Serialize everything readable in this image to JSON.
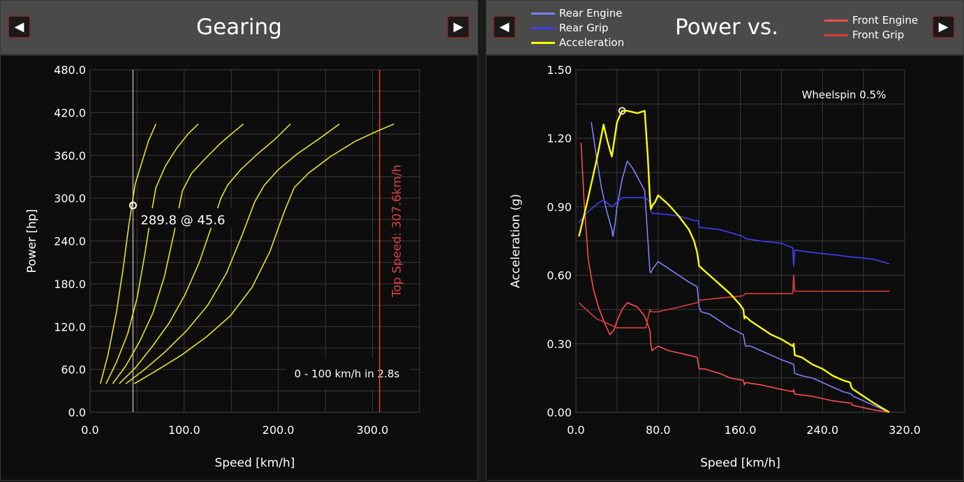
{
  "left_panel": {
    "title": "Gearing",
    "prev_label": "◀",
    "next_label": "▶"
  },
  "right_panel": {
    "title": "Power vs. Traction",
    "prev_label": "◀",
    "next_label": "▶",
    "legend": [
      {
        "name": "Rear Engine",
        "color": "#7f7fff"
      },
      {
        "name": "Rear Grip",
        "color": "#3f3fff"
      },
      {
        "name": "Acceleration",
        "color": "#ffff00"
      },
      {
        "name": "Front Engine",
        "color": "#ff4d4d"
      },
      {
        "name": "Front Grip",
        "color": "#e03c3c"
      }
    ]
  },
  "chart_data": [
    {
      "type": "line",
      "xlabel": "Speed [km/h]",
      "ylabel": "Power [hp]",
      "xlim": [
        0,
        350
      ],
      "ylim": [
        0,
        480
      ],
      "xticks": [
        "0.0",
        "100.0",
        "200.0",
        "300.0"
      ],
      "xtick_values": [
        0,
        100,
        200,
        300
      ],
      "yticks": [
        "0.0",
        "60.0",
        "120.0",
        "180.0",
        "240.0",
        "300.0",
        "360.0",
        "420.0",
        "480.0"
      ],
      "ytick_values": [
        0,
        60,
        120,
        180,
        240,
        300,
        360,
        420,
        480
      ],
      "grid": true,
      "color": "#e8e02a",
      "series": [
        {
          "x": [
            11,
            19,
            28,
            35,
            41,
            45,
            48,
            55,
            62,
            70
          ],
          "y": [
            40,
            80,
            140,
            200,
            260,
            295,
            320,
            350,
            380,
            404
          ]
        },
        {
          "x": [
            17,
            28,
            40,
            50,
            58,
            64,
            70,
            80,
            92,
            104,
            115
          ],
          "y": [
            40,
            70,
            110,
            160,
            220,
            270,
            315,
            345,
            370,
            390,
            404
          ]
        },
        {
          "x": [
            24,
            38,
            53,
            67,
            79,
            89,
            98,
            108,
            122,
            137,
            150,
            163
          ],
          "y": [
            40,
            65,
            100,
            140,
            190,
            250,
            310,
            335,
            355,
            375,
            390,
            404
          ]
        },
        {
          "x": [
            31,
            48,
            66,
            84,
            101,
            116,
            129,
            139,
            146,
            160,
            178,
            196,
            213
          ],
          "y": [
            40,
            62,
            92,
            125,
            165,
            210,
            260,
            300,
            318,
            340,
            362,
            382,
            404
          ]
        },
        {
          "x": [
            38,
            58,
            80,
            103,
            125,
            145,
            162,
            175,
            185,
            200,
            220,
            242,
            265
          ],
          "y": [
            40,
            60,
            85,
            115,
            150,
            195,
            250,
            295,
            318,
            340,
            362,
            382,
            404
          ]
        },
        {
          "x": [
            47,
            70,
            97,
            123,
            149,
            172,
            191,
            206,
            217,
            232,
            255,
            282,
            305,
            323
          ],
          "y": [
            40,
            58,
            80,
            105,
            135,
            175,
            225,
            280,
            315,
            335,
            358,
            380,
            394,
            404
          ]
        }
      ],
      "cursor": {
        "x": 45.6,
        "y": 289.8,
        "label": "289.8  @ 45.6"
      },
      "top_speed": {
        "x": 307.6,
        "label": "Top Speed: 307.6km/h",
        "color": "#e04040"
      },
      "annotation": "0 - 100 km/h in 2.8s"
    },
    {
      "type": "line",
      "xlabel": "Speed [km/h]",
      "ylabel": "Acceleration (g)",
      "xlim": [
        0,
        320
      ],
      "ylim": [
        0,
        1.5
      ],
      "xticks": [
        "0.0",
        "80.0",
        "160.0",
        "240.0",
        "320.0"
      ],
      "xtick_values": [
        0,
        80,
        160,
        240,
        320
      ],
      "yticks": [
        "0.00",
        "0.30",
        "0.60",
        "0.90",
        "1.20",
        "1.50"
      ],
      "ytick_values": [
        0,
        0.3,
        0.6,
        0.9,
        1.2,
        1.5
      ],
      "grid": true,
      "annotation": "Wheelspin 0.5%",
      "cursor": {
        "x": 45,
        "y": 1.32
      },
      "series": [
        {
          "name": "Rear Engine",
          "color": "#7f7fff",
          "width": 1.6,
          "x": [
            15,
            20,
            25,
            30,
            35,
            36,
            38,
            40,
            45,
            50,
            55,
            60,
            67,
            72,
            73,
            75,
            80,
            90,
            100,
            110,
            118,
            120,
            122,
            130,
            140,
            150,
            163,
            165,
            170,
            180,
            190,
            200,
            212,
            213,
            220,
            230,
            240,
            250,
            260,
            268,
            270,
            280,
            295,
            305
          ],
          "y": [
            1.27,
            1.12,
            0.98,
            0.88,
            0.8,
            0.77,
            0.82,
            0.9,
            1.02,
            1.1,
            1.07,
            1.03,
            0.97,
            0.62,
            0.61,
            0.63,
            0.66,
            0.63,
            0.6,
            0.57,
            0.55,
            0.46,
            0.44,
            0.43,
            0.4,
            0.37,
            0.34,
            0.29,
            0.29,
            0.27,
            0.25,
            0.23,
            0.21,
            0.17,
            0.16,
            0.15,
            0.13,
            0.11,
            0.09,
            0.08,
            0.07,
            0.05,
            0.02,
            0.0
          ]
        },
        {
          "name": "Rear Grip",
          "color": "#3f3fff",
          "width": 1.6,
          "x": [
            3,
            10,
            20,
            27,
            35,
            45,
            68,
            72,
            73,
            75,
            80,
            100,
            115,
            119,
            120,
            140,
            163,
            165,
            180,
            200,
            211,
            212,
            213,
            230,
            250,
            268,
            270,
            290,
            305
          ],
          "y": [
            0.83,
            0.87,
            0.91,
            0.93,
            0.9,
            0.94,
            0.94,
            0.92,
            0.88,
            0.87,
            0.87,
            0.86,
            0.84,
            0.84,
            0.81,
            0.8,
            0.77,
            0.76,
            0.75,
            0.74,
            0.72,
            0.64,
            0.71,
            0.7,
            0.69,
            0.68,
            0.68,
            0.67,
            0.65
          ]
        },
        {
          "name": "Front Engine",
          "color": "#ff4d4d",
          "width": 1.6,
          "x": [
            5,
            8,
            12,
            17,
            22,
            28,
            33,
            37,
            40,
            45,
            50,
            60,
            67,
            72,
            73,
            74,
            77,
            80,
            90,
            100,
            110,
            118,
            120,
            125,
            140,
            150,
            163,
            164,
            165,
            180,
            200,
            211,
            212,
            213,
            230,
            250,
            268,
            269,
            270,
            290,
            305
          ],
          "y": [
            1.18,
            0.92,
            0.67,
            0.54,
            0.46,
            0.39,
            0.34,
            0.36,
            0.4,
            0.45,
            0.48,
            0.46,
            0.42,
            0.36,
            0.3,
            0.27,
            0.28,
            0.29,
            0.27,
            0.26,
            0.25,
            0.24,
            0.19,
            0.19,
            0.17,
            0.15,
            0.14,
            0.12,
            0.13,
            0.12,
            0.1,
            0.09,
            0.1,
            0.08,
            0.07,
            0.05,
            0.04,
            0.03,
            0.03,
            0.01,
            0.0
          ]
        },
        {
          "name": "Front Grip",
          "color": "#e03c3c",
          "width": 1.6,
          "x": [
            3,
            10,
            20,
            30,
            40,
            45,
            50,
            60,
            68,
            72,
            73,
            75,
            80,
            100,
            118,
            120,
            140,
            163,
            165,
            190,
            211,
            212,
            213,
            240,
            268,
            270,
            305
          ],
          "y": [
            0.48,
            0.45,
            0.41,
            0.39,
            0.37,
            0.37,
            0.37,
            0.37,
            0.37,
            0.45,
            0.44,
            0.44,
            0.44,
            0.46,
            0.48,
            0.49,
            0.5,
            0.51,
            0.52,
            0.52,
            0.52,
            0.6,
            0.53,
            0.53,
            0.53,
            0.53,
            0.53
          ]
        },
        {
          "name": "Acceleration",
          "color": "#ffff00",
          "width": 2.4,
          "x": [
            3,
            10,
            20,
            27,
            30,
            33,
            35,
            37,
            40,
            45,
            50,
            60,
            67,
            70,
            72,
            73,
            75,
            77,
            80,
            90,
            100,
            110,
            115,
            118,
            120,
            130,
            140,
            150,
            160,
            163,
            164,
            165,
            170,
            180,
            190,
            200,
            211,
            212,
            213,
            220,
            230,
            240,
            250,
            260,
            267,
            268,
            270,
            280,
            290,
            305
          ],
          "y": [
            0.77,
            0.9,
            1.1,
            1.26,
            1.2,
            1.15,
            1.12,
            1.18,
            1.27,
            1.32,
            1.32,
            1.31,
            1.32,
            1.12,
            0.94,
            0.89,
            0.91,
            0.92,
            0.95,
            0.91,
            0.86,
            0.8,
            0.75,
            0.7,
            0.64,
            0.6,
            0.56,
            0.52,
            0.47,
            0.45,
            0.41,
            0.42,
            0.4,
            0.37,
            0.34,
            0.32,
            0.29,
            0.3,
            0.25,
            0.24,
            0.21,
            0.19,
            0.16,
            0.14,
            0.13,
            0.11,
            0.1,
            0.07,
            0.04,
            0.0
          ]
        }
      ]
    }
  ]
}
